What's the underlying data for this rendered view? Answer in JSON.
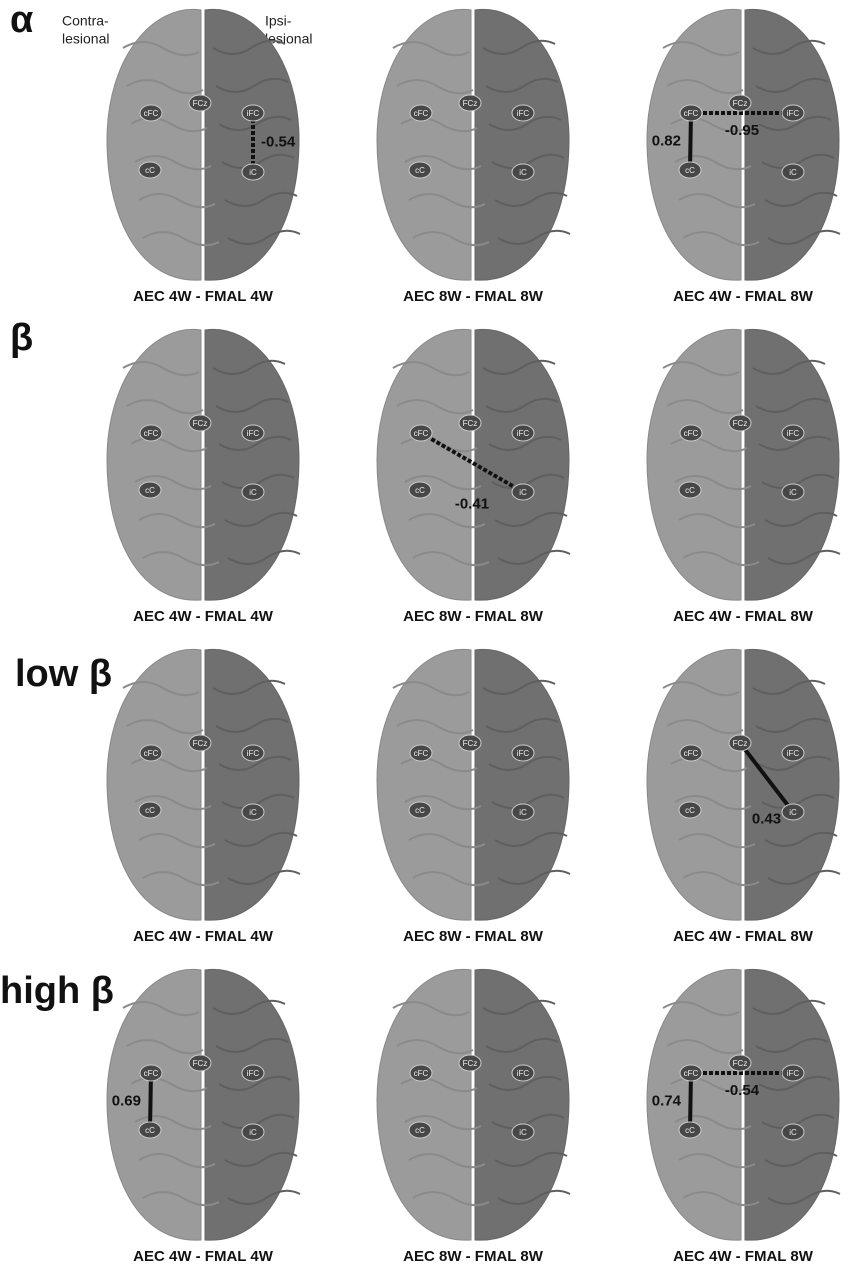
{
  "side_labels": {
    "left": [
      "Contra-",
      "lesional"
    ],
    "right": [
      "Ipsi-",
      "lesional"
    ]
  },
  "nodes": [
    "cFC",
    "FCz",
    "iFC",
    "cC",
    "iC"
  ],
  "rows": [
    {
      "label": "α",
      "panels": [
        {
          "caption": "AEC 4W - FMAL 4W",
          "edges": [
            {
              "from": "iFC",
              "to": "iC",
              "value": -0.54
            }
          ]
        },
        {
          "caption": "AEC 8W - FMAL 8W",
          "edges": []
        },
        {
          "caption": "AEC 4W - FMAL 8W",
          "edges": [
            {
              "from": "cFC",
              "to": "cC",
              "value": 0.82
            },
            {
              "from": "cFC",
              "to": "iFC",
              "value": -0.95
            }
          ]
        }
      ]
    },
    {
      "label": "β",
      "panels": [
        {
          "caption": "AEC 4W - FMAL 4W",
          "edges": []
        },
        {
          "caption": "AEC 8W - FMAL 8W",
          "edges": [
            {
              "from": "cFC",
              "to": "iC",
              "value": -0.41
            }
          ]
        },
        {
          "caption": "AEC 4W - FMAL 8W",
          "edges": []
        }
      ]
    },
    {
      "label": "low β",
      "panels": [
        {
          "caption": "AEC 4W - FMAL 4W",
          "edges": []
        },
        {
          "caption": "AEC 8W - FMAL 8W",
          "edges": []
        },
        {
          "caption": "AEC 4W - FMAL 8W",
          "edges": [
            {
              "from": "FCz",
              "to": "iC",
              "value": 0.43
            }
          ]
        }
      ]
    },
    {
      "label": "high β",
      "panels": [
        {
          "caption": "AEC 4W - FMAL 4W",
          "edges": [
            {
              "from": "cFC",
              "to": "cC",
              "value": 0.69
            }
          ]
        },
        {
          "caption": "AEC 8W - FMAL 8W",
          "edges": []
        },
        {
          "caption": "AEC 4W - FMAL 8W",
          "edges": [
            {
              "from": "cFC",
              "to": "cC",
              "value": 0.74
            },
            {
              "from": "cFC",
              "to": "iFC",
              "value": -0.54
            }
          ]
        }
      ]
    }
  ]
}
